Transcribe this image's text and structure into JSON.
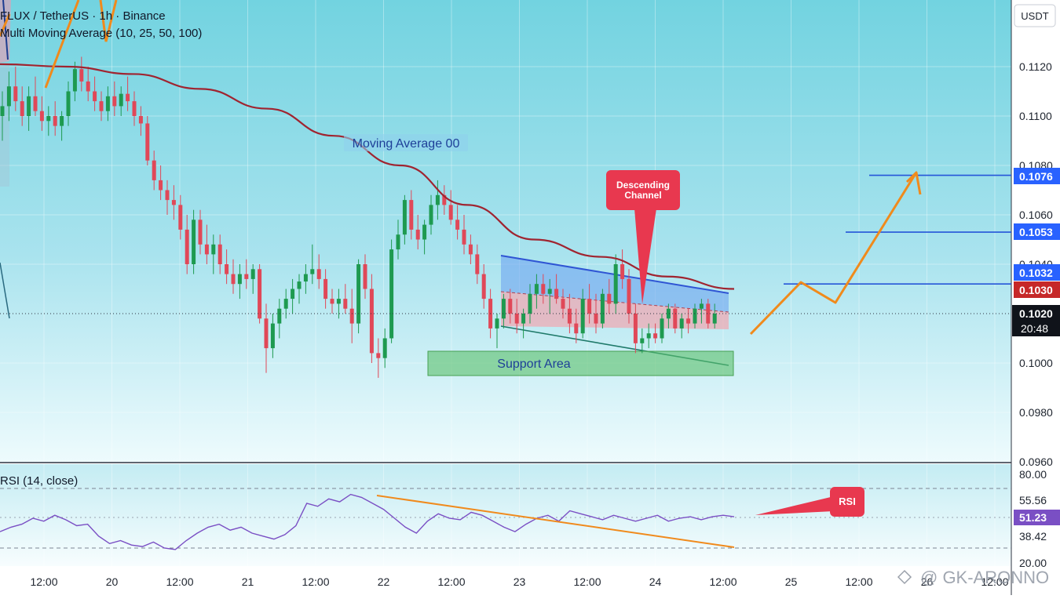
{
  "header": {
    "symbol_line": "FLUX / TetherUS · 1h · Binance",
    "indicator_line": "Multi Moving Average (10, 25, 50, 100)"
  },
  "currency_button": "USDT",
  "annotations": {
    "moving_average_label": "Moving Average 00",
    "descending_channel_line1": "Descending",
    "descending_channel_line2": "Channel",
    "support_area": "Support Area",
    "rsi_callout": "RSI"
  },
  "price_badges": {
    "target1": "0.1076",
    "target2": "0.1053",
    "target3": "0.1032",
    "ma_value": "0.1030",
    "last_price": "0.1020",
    "countdown": "20:48"
  },
  "rsi": {
    "label": "RSI (14, close)",
    "current": "51.23",
    "levels": [
      "80.00",
      "55.56",
      "38.42",
      "20.00"
    ]
  },
  "watermark": "@ GK-ARONNO",
  "colors": {
    "bullish": "#1e9a50",
    "bearish": "#e04858",
    "ma_line": "#a02430",
    "forecast": "#f08a1c",
    "target_line": "#2555d8",
    "rsi_line": "#7a4fc4",
    "badge_blue": "#2962ff",
    "badge_red": "#c62828",
    "callout_red": "#e8384f"
  },
  "chart_data": {
    "type": "candlestick",
    "price_axis": {
      "ticks": [
        "0.1120",
        "0.1100",
        "0.1080",
        "0.1060",
        "0.1040",
        "0.1000",
        "0.0980",
        "0.0960"
      ],
      "ylim": [
        0.096,
        0.113
      ]
    },
    "time_axis": {
      "ticks": [
        "12:00",
        "20",
        "12:00",
        "21",
        "12:00",
        "22",
        "12:00",
        "23",
        "12:00",
        "24",
        "12:00",
        "25",
        "12:00",
        "26",
        "12:00"
      ]
    },
    "candles": [
      {
        "o": 0.11,
        "h": 0.111,
        "l": 0.109,
        "c": 0.1104
      },
      {
        "o": 0.1104,
        "h": 0.1118,
        "l": 0.1098,
        "c": 0.1112
      },
      {
        "o": 0.1112,
        "h": 0.112,
        "l": 0.1102,
        "c": 0.1106
      },
      {
        "o": 0.1106,
        "h": 0.1112,
        "l": 0.1096,
        "c": 0.11
      },
      {
        "o": 0.11,
        "h": 0.1112,
        "l": 0.1094,
        "c": 0.1108
      },
      {
        "o": 0.1108,
        "h": 0.1116,
        "l": 0.11,
        "c": 0.1102
      },
      {
        "o": 0.1102,
        "h": 0.1108,
        "l": 0.1094,
        "c": 0.1098
      },
      {
        "o": 0.1098,
        "h": 0.1104,
        "l": 0.1092,
        "c": 0.11
      },
      {
        "o": 0.11,
        "h": 0.1106,
        "l": 0.1092,
        "c": 0.1096
      },
      {
        "o": 0.1096,
        "h": 0.1102,
        "l": 0.109,
        "c": 0.11
      },
      {
        "o": 0.11,
        "h": 0.1114,
        "l": 0.1096,
        "c": 0.111
      },
      {
        "o": 0.111,
        "h": 0.1122,
        "l": 0.1106,
        "c": 0.1119
      },
      {
        "o": 0.1119,
        "h": 0.1124,
        "l": 0.111,
        "c": 0.1114
      },
      {
        "o": 0.1114,
        "h": 0.112,
        "l": 0.1106,
        "c": 0.111
      },
      {
        "o": 0.111,
        "h": 0.1116,
        "l": 0.1102,
        "c": 0.1106
      },
      {
        "o": 0.1106,
        "h": 0.111,
        "l": 0.1098,
        "c": 0.1102
      },
      {
        "o": 0.1102,
        "h": 0.1112,
        "l": 0.1098,
        "c": 0.1108
      },
      {
        "o": 0.1108,
        "h": 0.1114,
        "l": 0.11,
        "c": 0.1104
      },
      {
        "o": 0.1104,
        "h": 0.1112,
        "l": 0.11,
        "c": 0.1109
      },
      {
        "o": 0.1109,
        "h": 0.1116,
        "l": 0.1102,
        "c": 0.1106
      },
      {
        "o": 0.1106,
        "h": 0.111,
        "l": 0.1096,
        "c": 0.11
      },
      {
        "o": 0.11,
        "h": 0.1104,
        "l": 0.1092,
        "c": 0.1097
      },
      {
        "o": 0.1097,
        "h": 0.11,
        "l": 0.108,
        "c": 0.1082
      },
      {
        "o": 0.1082,
        "h": 0.1086,
        "l": 0.107,
        "c": 0.1074
      },
      {
        "o": 0.1074,
        "h": 0.108,
        "l": 0.1066,
        "c": 0.107
      },
      {
        "o": 0.107,
        "h": 0.1074,
        "l": 0.106,
        "c": 0.1066
      },
      {
        "o": 0.1066,
        "h": 0.1072,
        "l": 0.1058,
        "c": 0.1064
      },
      {
        "o": 0.1064,
        "h": 0.1068,
        "l": 0.105,
        "c": 0.1054
      },
      {
        "o": 0.1054,
        "h": 0.106,
        "l": 0.1036,
        "c": 0.104
      },
      {
        "o": 0.104,
        "h": 0.1062,
        "l": 0.1036,
        "c": 0.1058
      },
      {
        "o": 0.1058,
        "h": 0.1062,
        "l": 0.1044,
        "c": 0.1048
      },
      {
        "o": 0.1048,
        "h": 0.1056,
        "l": 0.104,
        "c": 0.1044
      },
      {
        "o": 0.1044,
        "h": 0.1052,
        "l": 0.1036,
        "c": 0.1048
      },
      {
        "o": 0.1048,
        "h": 0.1052,
        "l": 0.1036,
        "c": 0.104
      },
      {
        "o": 0.104,
        "h": 0.1046,
        "l": 0.1032,
        "c": 0.1036
      },
      {
        "o": 0.1036,
        "h": 0.1042,
        "l": 0.1028,
        "c": 0.1032
      },
      {
        "o": 0.1032,
        "h": 0.104,
        "l": 0.1026,
        "c": 0.1036
      },
      {
        "o": 0.1036,
        "h": 0.1042,
        "l": 0.103,
        "c": 0.1034
      },
      {
        "o": 0.1034,
        "h": 0.104,
        "l": 0.1028,
        "c": 0.1038
      },
      {
        "o": 0.1038,
        "h": 0.104,
        "l": 0.1016,
        "c": 0.1018
      },
      {
        "o": 0.1018,
        "h": 0.1024,
        "l": 0.0996,
        "c": 0.1006
      },
      {
        "o": 0.1006,
        "h": 0.102,
        "l": 0.1002,
        "c": 0.1016
      },
      {
        "o": 0.1016,
        "h": 0.1026,
        "l": 0.101,
        "c": 0.1022
      },
      {
        "o": 0.1022,
        "h": 0.103,
        "l": 0.1018,
        "c": 0.1026
      },
      {
        "o": 0.1026,
        "h": 0.1034,
        "l": 0.102,
        "c": 0.103
      },
      {
        "o": 0.103,
        "h": 0.1036,
        "l": 0.1024,
        "c": 0.1033
      },
      {
        "o": 0.1033,
        "h": 0.104,
        "l": 0.1028,
        "c": 0.1036
      },
      {
        "o": 0.1036,
        "h": 0.1048,
        "l": 0.1032,
        "c": 0.1038
      },
      {
        "o": 0.1038,
        "h": 0.1044,
        "l": 0.103,
        "c": 0.1034
      },
      {
        "o": 0.1034,
        "h": 0.1038,
        "l": 0.1022,
        "c": 0.1026
      },
      {
        "o": 0.1026,
        "h": 0.103,
        "l": 0.102,
        "c": 0.1024
      },
      {
        "o": 0.1024,
        "h": 0.103,
        "l": 0.1018,
        "c": 0.1026
      },
      {
        "o": 0.1026,
        "h": 0.1032,
        "l": 0.102,
        "c": 0.1022
      },
      {
        "o": 0.1022,
        "h": 0.103,
        "l": 0.1008,
        "c": 0.1016
      },
      {
        "o": 0.1016,
        "h": 0.1042,
        "l": 0.1012,
        "c": 0.104
      },
      {
        "o": 0.104,
        "h": 0.1044,
        "l": 0.1026,
        "c": 0.103
      },
      {
        "o": 0.103,
        "h": 0.1036,
        "l": 0.1,
        "c": 0.1004
      },
      {
        "o": 0.1004,
        "h": 0.101,
        "l": 0.0994,
        "c": 0.1002
      },
      {
        "o": 0.1002,
        "h": 0.1014,
        "l": 0.0998,
        "c": 0.101
      },
      {
        "o": 0.101,
        "h": 0.105,
        "l": 0.1008,
        "c": 0.1046
      },
      {
        "o": 0.1046,
        "h": 0.1058,
        "l": 0.1042,
        "c": 0.1052
      },
      {
        "o": 0.1052,
        "h": 0.1068,
        "l": 0.1048,
        "c": 0.1066
      },
      {
        "o": 0.1066,
        "h": 0.107,
        "l": 0.105,
        "c": 0.1054
      },
      {
        "o": 0.1054,
        "h": 0.106,
        "l": 0.1046,
        "c": 0.105
      },
      {
        "o": 0.105,
        "h": 0.1058,
        "l": 0.1044,
        "c": 0.1056
      },
      {
        "o": 0.1056,
        "h": 0.1068,
        "l": 0.1052,
        "c": 0.1064
      },
      {
        "o": 0.1064,
        "h": 0.1074,
        "l": 0.1058,
        "c": 0.1068
      },
      {
        "o": 0.1068,
        "h": 0.1072,
        "l": 0.106,
        "c": 0.1064
      },
      {
        "o": 0.1064,
        "h": 0.107,
        "l": 0.1056,
        "c": 0.1058
      },
      {
        "o": 0.1058,
        "h": 0.1064,
        "l": 0.105,
        "c": 0.1054
      },
      {
        "o": 0.1054,
        "h": 0.106,
        "l": 0.1044,
        "c": 0.1048
      },
      {
        "o": 0.1048,
        "h": 0.1052,
        "l": 0.104,
        "c": 0.1044
      },
      {
        "o": 0.1044,
        "h": 0.1048,
        "l": 0.1032,
        "c": 0.1036
      },
      {
        "o": 0.1036,
        "h": 0.104,
        "l": 0.1022,
        "c": 0.1026
      },
      {
        "o": 0.1026,
        "h": 0.103,
        "l": 0.101,
        "c": 0.1014
      },
      {
        "o": 0.1014,
        "h": 0.102,
        "l": 0.1006,
        "c": 0.1018
      },
      {
        "o": 0.1018,
        "h": 0.1028,
        "l": 0.1014,
        "c": 0.1026
      },
      {
        "o": 0.1026,
        "h": 0.103,
        "l": 0.1016,
        "c": 0.102
      },
      {
        "o": 0.102,
        "h": 0.1026,
        "l": 0.1012,
        "c": 0.1016
      },
      {
        "o": 0.1016,
        "h": 0.1022,
        "l": 0.101,
        "c": 0.102
      },
      {
        "o": 0.102,
        "h": 0.1032,
        "l": 0.1016,
        "c": 0.1028
      },
      {
        "o": 0.1028,
        "h": 0.1036,
        "l": 0.1022,
        "c": 0.1032
      },
      {
        "o": 0.1032,
        "h": 0.1036,
        "l": 0.1024,
        "c": 0.1028
      },
      {
        "o": 0.1028,
        "h": 0.1034,
        "l": 0.102,
        "c": 0.103
      },
      {
        "o": 0.103,
        "h": 0.1036,
        "l": 0.1024,
        "c": 0.1026
      },
      {
        "o": 0.1026,
        "h": 0.103,
        "l": 0.1018,
        "c": 0.1022
      },
      {
        "o": 0.1022,
        "h": 0.1028,
        "l": 0.1012,
        "c": 0.1016
      },
      {
        "o": 0.1016,
        "h": 0.1022,
        "l": 0.1008,
        "c": 0.1012
      },
      {
        "o": 0.1012,
        "h": 0.103,
        "l": 0.101,
        "c": 0.1026
      },
      {
        "o": 0.1026,
        "h": 0.1032,
        "l": 0.1016,
        "c": 0.102
      },
      {
        "o": 0.102,
        "h": 0.1028,
        "l": 0.1012,
        "c": 0.1016
      },
      {
        "o": 0.1016,
        "h": 0.103,
        "l": 0.1014,
        "c": 0.1028
      },
      {
        "o": 0.1028,
        "h": 0.1034,
        "l": 0.102,
        "c": 0.1024
      },
      {
        "o": 0.1024,
        "h": 0.1044,
        "l": 0.102,
        "c": 0.104
      },
      {
        "o": 0.104,
        "h": 0.1046,
        "l": 0.103,
        "c": 0.1034
      },
      {
        "o": 0.1034,
        "h": 0.1038,
        "l": 0.1016,
        "c": 0.102
      },
      {
        "o": 0.102,
        "h": 0.1024,
        "l": 0.1004,
        "c": 0.1008
      },
      {
        "o": 0.1008,
        "h": 0.1014,
        "l": 0.1004,
        "c": 0.101
      },
      {
        "o": 0.101,
        "h": 0.1016,
        "l": 0.1006,
        "c": 0.1012
      },
      {
        "o": 0.1012,
        "h": 0.1016,
        "l": 0.1008,
        "c": 0.101
      },
      {
        "o": 0.101,
        "h": 0.102,
        "l": 0.1008,
        "c": 0.1018
      },
      {
        "o": 0.1018,
        "h": 0.1024,
        "l": 0.1014,
        "c": 0.1022
      },
      {
        "o": 0.1022,
        "h": 0.1024,
        "l": 0.1012,
        "c": 0.1014
      },
      {
        "o": 0.1014,
        "h": 0.102,
        "l": 0.101,
        "c": 0.1018
      },
      {
        "o": 0.1018,
        "h": 0.1022,
        "l": 0.1012,
        "c": 0.1016
      },
      {
        "o": 0.1016,
        "h": 0.1024,
        "l": 0.1014,
        "c": 0.1022
      },
      {
        "o": 0.1022,
        "h": 0.1026,
        "l": 0.1016,
        "c": 0.1024
      },
      {
        "o": 0.1024,
        "h": 0.1026,
        "l": 0.1014,
        "c": 0.1016
      },
      {
        "o": 0.1016,
        "h": 0.1024,
        "l": 0.1014,
        "c": 0.102
      }
    ],
    "moving_average_100": [
      0.1121,
      0.112,
      0.1117,
      0.1111,
      0.1103,
      0.1092,
      0.108,
      0.1064,
      0.105,
      0.1043,
      0.1035,
      0.103
    ],
    "rsi_series": [
      41,
      44,
      46,
      50,
      48,
      52,
      49,
      45,
      46,
      38,
      33,
      35,
      32,
      31,
      34,
      30,
      29,
      35,
      40,
      44,
      46,
      42,
      44,
      40,
      38,
      36,
      39,
      45,
      60,
      58,
      63,
      61,
      66,
      64,
      60,
      56,
      50,
      44,
      40,
      48,
      53,
      50,
      49,
      54,
      52,
      48,
      44,
      41,
      46,
      50,
      52,
      48,
      55,
      53,
      51,
      49,
      52,
      50,
      48,
      50,
      52,
      48,
      50,
      51,
      49,
      51,
      52,
      51
    ],
    "targets": [
      0.1076,
      0.1053,
      0.1032
    ],
    "support_zone": [
      0.0996,
      0.1004
    ],
    "rsi_ylim": [
      20,
      80
    ]
  }
}
